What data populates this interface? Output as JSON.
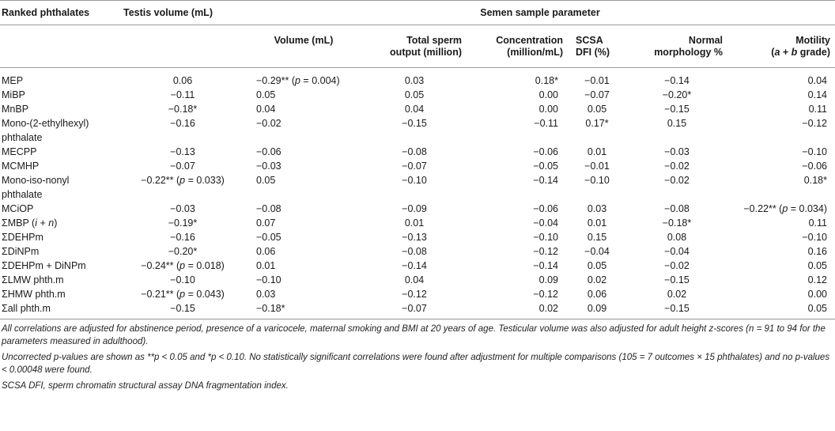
{
  "headers": {
    "ranked": "Ranked phthalates",
    "testis": "Testis volume (mL)",
    "semen": "Semen sample parameter",
    "volume": "Volume (mL)",
    "total_sperm_1": "Total sperm",
    "total_sperm_2": "output (million)",
    "concentration_1": "Concentration",
    "concentration_2": "(million/mL)",
    "scsa_1": "SCSA",
    "scsa_2": "DFI (%)",
    "normal_1": "Normal",
    "normal_2": "morphology %",
    "motility_1": "Motility",
    "motility_2": "(a + b grade)"
  },
  "rows": [
    {
      "name": "MEP",
      "testis": "0.06",
      "volume": "−0.29** (p = 0.004)",
      "total": "0.03",
      "conc": "0.18*",
      "scsa": "−0.01",
      "normal": "−0.14",
      "motility": "0.04"
    },
    {
      "name": "MiBP",
      "testis": "−0.11",
      "volume": "0.05",
      "total": "0.05",
      "conc": "0.00",
      "scsa": "−0.07",
      "normal": "−0.20*",
      "motility": "0.14"
    },
    {
      "name": "MnBP",
      "testis": "−0.18*",
      "volume": "0.04",
      "total": "0.04",
      "conc": "0.00",
      "scsa": "0.05",
      "normal": "−0.15",
      "motility": "0.11"
    },
    {
      "name": "Mono-(2-ethylhexyl)",
      "name2": "phthalate",
      "testis": "−0.16",
      "volume": "−0.02",
      "total": "−0.15",
      "conc": "−0.11",
      "scsa": "0.17*",
      "normal": "0.15",
      "motility": "−0.12"
    },
    {
      "name": "MECPP",
      "testis": "−0.13",
      "volume": "−0.06",
      "total": "−0.08",
      "conc": "−0.06",
      "scsa": "0.01",
      "normal": "−0.03",
      "motility": "−0.10"
    },
    {
      "name": "MCMHP",
      "testis": "−0.07",
      "volume": "−0.03",
      "total": "−0.07",
      "conc": "−0.05",
      "scsa": "−0.01",
      "normal": "−0.02",
      "motility": "−0.06"
    },
    {
      "name": "Mono-iso-nonyl",
      "name2": "phthalate",
      "testis": "−0.22** (p = 0.033)",
      "volume": "0.05",
      "total": "−0.10",
      "conc": "−0.14",
      "scsa": "−0.10",
      "normal": "−0.02",
      "motility": "0.18*"
    },
    {
      "name": "MCiOP",
      "testis": "−0.03",
      "volume": "−0.08",
      "total": "−0.09",
      "conc": "−0.06",
      "scsa": "0.03",
      "normal": "−0.08",
      "motility": "−0.22** (p = 0.034)"
    },
    {
      "name": "ΣMBP (i + n)",
      "testis": "−0.19*",
      "volume": "0.07",
      "total": "0.01",
      "conc": "−0.04",
      "scsa": "0.01",
      "normal": "−0.18*",
      "motility": "0.11"
    },
    {
      "name": "ΣDEHPm",
      "testis": "−0.16",
      "volume": "−0.05",
      "total": "−0.13",
      "conc": "−0.10",
      "scsa": "0.15",
      "normal": "0.08",
      "motility": "−0.10"
    },
    {
      "name": "ΣDiNPm",
      "testis": "−0.20*",
      "volume": "0.06",
      "total": "−0.08",
      "conc": "−0.12",
      "scsa": "−0.04",
      "normal": "−0.04",
      "motility": "0.16"
    },
    {
      "name": "ΣDEHPm + DiNPm",
      "testis": "−0.24** (p = 0.018)",
      "volume": "0.01",
      "total": "−0.14",
      "conc": "−0.14",
      "scsa": "0.05",
      "normal": "−0.02",
      "motility": "0.05"
    },
    {
      "name": "ΣLMW phth.m",
      "testis": "−0.10",
      "volume": "−0.10",
      "total": "0.04",
      "conc": "0.09",
      "scsa": "0.02",
      "normal": "−0.15",
      "motility": "0.12"
    },
    {
      "name": "ΣHMW phth.m",
      "testis": "−0.21** (p = 0.043)",
      "volume": "0.03",
      "total": "−0.12",
      "conc": "−0.12",
      "scsa": "0.06",
      "normal": "0.02",
      "motility": "0.00"
    },
    {
      "name": "Σall phth.m",
      "testis": "−0.15",
      "volume": "−0.18*",
      "total": "−0.07",
      "conc": "0.02",
      "scsa": "0.09",
      "normal": "−0.15",
      "motility": "0.05"
    }
  ],
  "footnotes": [
    "All correlations are adjusted for abstinence period, presence of a varicocele, maternal smoking and BMI at 20 years of age. Testicular volume was also adjusted for adult height z-scores (n = 91 to 94 for the parameters measured in adulthood).",
    "Uncorrected p-values are shown as **p < 0.05 and *p < 0.10. No statistically significant correlations were found after adjustment for multiple comparisons (105 = 7 outcomes × 15 phthalates) and no p-values < 0.00048 were found.",
    "SCSA DFI, sperm chromatin structural assay DNA fragmentation index."
  ]
}
